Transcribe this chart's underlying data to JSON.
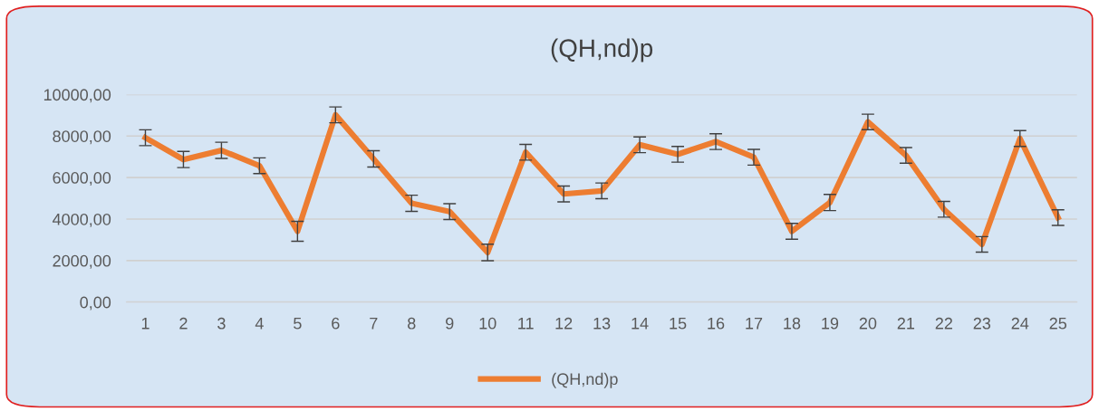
{
  "chart_data": {
    "type": "line",
    "title": "(QH,nd)p",
    "categories": [
      "1",
      "2",
      "3",
      "4",
      "5",
      "6",
      "7",
      "8",
      "9",
      "10",
      "11",
      "12",
      "13",
      "14",
      "15",
      "16",
      "17",
      "18",
      "19",
      "20",
      "21",
      "22",
      "23",
      "24",
      "25"
    ],
    "series": [
      {
        "name": "(QH,nd)p",
        "color": "#ed7d31",
        "values": [
          7920,
          6870,
          7310,
          6570,
          3410,
          9020,
          6900,
          4760,
          4360,
          2390,
          7220,
          5210,
          5360,
          7580,
          7120,
          7730,
          6980,
          3410,
          4800,
          8680,
          7070,
          4470,
          2780,
          7880,
          4070
        ],
        "errors": [
          380,
          390,
          390,
          380,
          480,
          380,
          390,
          390,
          380,
          400,
          380,
          380,
          380,
          380,
          380,
          380,
          380,
          380,
          390,
          375,
          375,
          380,
          375,
          380,
          375
        ]
      }
    ],
    "ylim": [
      0,
      10000
    ],
    "yticks": [
      {
        "value": 0,
        "label": "0,00"
      },
      {
        "value": 2000,
        "label": "2000,00"
      },
      {
        "value": 4000,
        "label": "4000,00"
      },
      {
        "value": 6000,
        "label": "6000,00"
      },
      {
        "value": 8000,
        "label": "8000,00"
      },
      {
        "value": 10000,
        "label": "10000,00"
      }
    ],
    "grid": "y",
    "legend": "bottom",
    "marker": "none",
    "line_style": "solid"
  }
}
